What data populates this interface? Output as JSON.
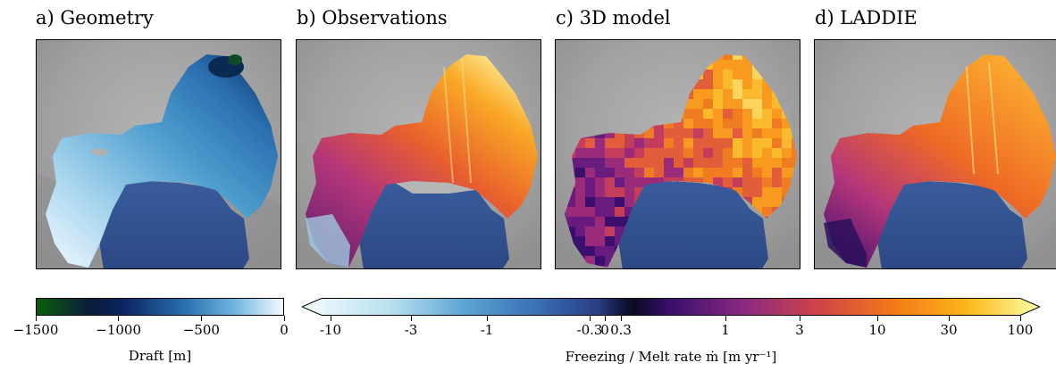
{
  "panels": [
    {
      "label": "a) Geometry",
      "field": "draft"
    },
    {
      "label": "b) Observations",
      "field": "observed_melt"
    },
    {
      "label": "c) 3D model",
      "field": "model_melt"
    },
    {
      "label": "d) LADDIE",
      "field": "laddie_melt"
    }
  ],
  "colorbar_draft": {
    "label": "Draft [m]",
    "ticks": [
      "−1500",
      "−1000",
      "−500",
      "0"
    ],
    "tick_values": [
      -1500,
      -1000,
      -500,
      0
    ],
    "range": [
      -1500,
      0
    ],
    "colors": [
      "#0a5e0a",
      "#081d4f",
      "#1b5a93",
      "#4f9fcf",
      "#a9d6ee",
      "#f4fbff"
    ]
  },
  "colorbar_melt": {
    "label": "Freezing / Melt rate ṁ [m yr⁻¹]",
    "ticks": [
      "-10",
      "-3",
      "-1",
      "-0.3",
      "0",
      "0.3",
      "1",
      "3",
      "10",
      "30",
      "100"
    ],
    "tick_values": [
      -10,
      -3,
      -1,
      -0.3,
      0,
      0.3,
      1,
      3,
      10,
      30,
      100
    ],
    "extend": "both",
    "colors": [
      "#eef8fb",
      "#9fd1e6",
      "#4f93c8",
      "#2b5aa1",
      "#1c2d6b",
      "#0d0d2e",
      "#3b0f6e",
      "#8c2981",
      "#cf4446",
      "#f37819",
      "#fcb519",
      "#fcffa4"
    ]
  },
  "chart_data": {
    "type": "heatmap",
    "panels": [
      "a) Geometry",
      "b) Observations",
      "c) 3D model",
      "d) LADDIE"
    ],
    "colorbars": [
      {
        "label": "Draft [m]",
        "range": [
          -1500,
          0
        ],
        "ticks": [
          -1500,
          -1000,
          -500,
          0
        ]
      },
      {
        "label": "Freezing / Melt rate ṁ [m yr⁻¹]",
        "scale": "symlog",
        "ticks": [
          -10,
          -3,
          -1,
          -0.3,
          0,
          0.3,
          1,
          3,
          10,
          30,
          100
        ],
        "extend": "both"
      }
    ]
  }
}
